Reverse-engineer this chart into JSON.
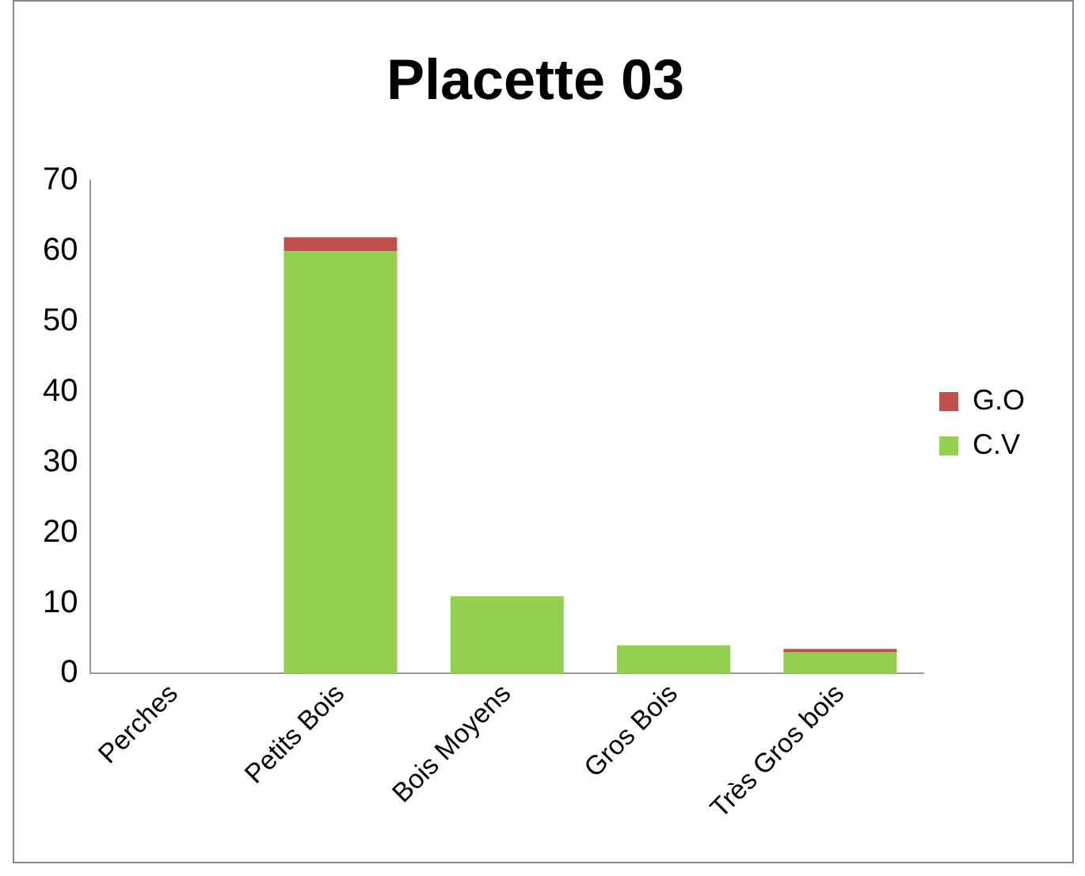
{
  "chart_data": {
    "type": "bar",
    "title": "Placette 03",
    "stacked": true,
    "categories": [
      "Perches",
      "Petits Bois",
      "Bois Moyens",
      "Gros Bois",
      "Très Gros bois"
    ],
    "series": [
      {
        "name": "C.V",
        "color": "#92d050",
        "values": [
          0,
          60,
          11,
          4,
          3
        ]
      },
      {
        "name": "G.O",
        "color": "#c0504d",
        "values": [
          0,
          2,
          0,
          0,
          0.5
        ]
      }
    ],
    "ylim": [
      0,
      70
    ],
    "yticks": [
      0,
      10,
      20,
      30,
      40,
      50,
      60,
      70
    ],
    "grid": false,
    "legend": "right"
  }
}
